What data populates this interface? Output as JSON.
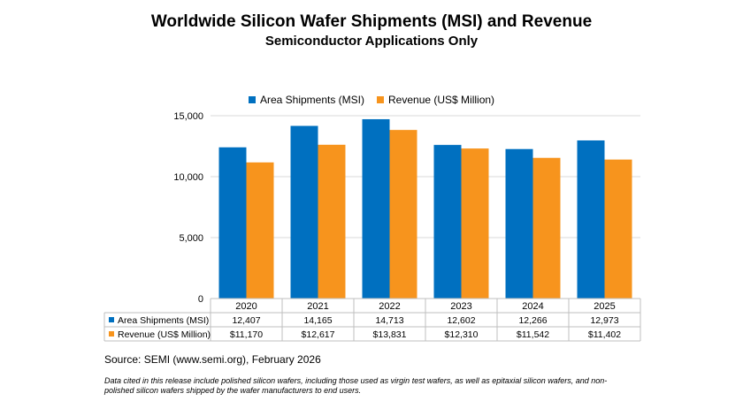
{
  "header": {
    "title": "Worldwide Silicon Wafer Shipments (MSI) and Revenue",
    "subtitle": "Semiconductor Applications Only"
  },
  "chart_data": {
    "type": "bar",
    "title": "Worldwide Silicon Wafer Shipments (MSI) and Revenue",
    "subtitle": "Semiconductor Applications Only",
    "categories": [
      "2020",
      "2021",
      "2022",
      "2023",
      "2024",
      "2025"
    ],
    "series": [
      {
        "name": "Area Shipments (MSI)",
        "values": [
          12407,
          14165,
          14713,
          12602,
          12266,
          12973
        ],
        "color": "#0070C0"
      },
      {
        "name": "Revenue (US$ Million)",
        "values": [
          11170,
          12617,
          13831,
          12310,
          11542,
          11402
        ],
        "color": "#F7941D"
      }
    ],
    "yticks": [
      "0",
      "5,000",
      "10,000",
      "15,000"
    ],
    "ylim": [
      0,
      15000
    ],
    "legend": "top-center",
    "grid": true,
    "data_table": {
      "rows": [
        {
          "label": "Area Shipments (MSI)",
          "cells": [
            "12,407",
            "14,165",
            "14,713",
            "12,602",
            "12,266",
            "12,973"
          ]
        },
        {
          "label": "Revenue (US$ Million)",
          "cells": [
            "$11,170",
            "$12,617",
            "$13,831",
            "$12,310",
            "$11,542",
            "$11,402"
          ]
        }
      ]
    }
  },
  "footer": {
    "source": "Source: SEMI (www.semi.org), February 2026",
    "note": "Data cited in this release include polished silicon wafers, including those used as virgin test wafers, as well as epitaxial silicon wafers, and non-polished silicon wafers shipped by the wafer manufacturers to end users."
  }
}
